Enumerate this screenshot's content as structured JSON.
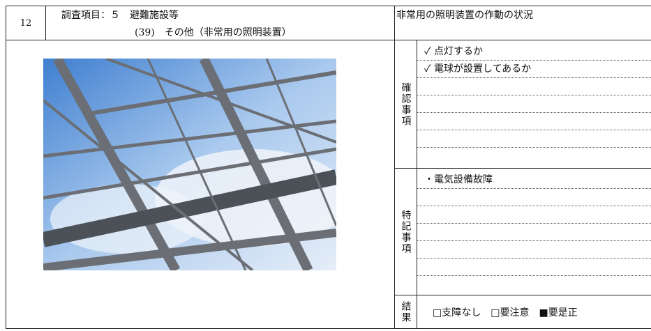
{
  "header": {
    "number": "12",
    "title_line1": "調査項目：５　避難施設等",
    "title_line2": "(39)　その他（非常用の照明装置）",
    "subject": "非常用の照明装置の作動の状況"
  },
  "check": {
    "label": "確認事項",
    "items": [
      "✓ 点灯するか",
      "✓ 電球が設置してあるか"
    ]
  },
  "notes": {
    "label": "特記事項",
    "items": [
      "・電気設備故障"
    ]
  },
  "result": {
    "label": "結果",
    "options": [
      "□支障なし",
      "□要注意",
      "■要是正"
    ]
  }
}
